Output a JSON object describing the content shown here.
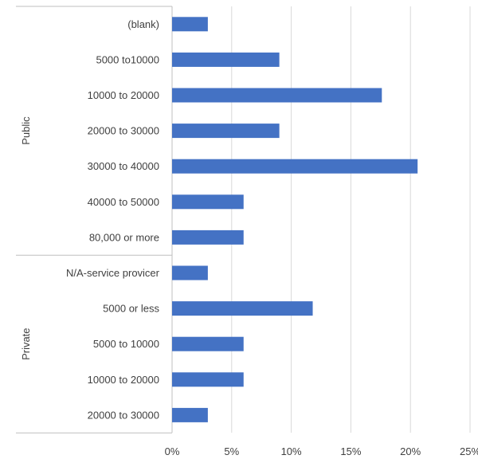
{
  "chart_data": {
    "type": "bar",
    "orientation": "horizontal",
    "groups": [
      {
        "name": "Public",
        "categories": [
          "(blank)",
          "5000 to10000",
          "10000 to 20000",
          "20000 to 30000",
          "30000 to 40000",
          "40000 to 50000",
          "80,000 or more"
        ],
        "values": [
          3,
          9,
          17.6,
          9,
          20.6,
          6,
          6
        ]
      },
      {
        "name": "Private",
        "categories": [
          "N/A-service provicer",
          "5000 or less",
          "5000 to 10000",
          "10000 to 20000",
          "20000 to 30000"
        ],
        "values": [
          3,
          11.8,
          6,
          6,
          3
        ]
      }
    ],
    "xlim": [
      0,
      25
    ],
    "xticks": [
      0,
      5,
      10,
      15,
      20,
      25
    ],
    "xtick_labels": [
      "0%",
      "5%",
      "10%",
      "15%",
      "20%",
      "25%"
    ],
    "grid": true,
    "bar_color": "#4472C4",
    "grid_color": "#D9D9D9",
    "axis_color": "#BFBFBF"
  }
}
